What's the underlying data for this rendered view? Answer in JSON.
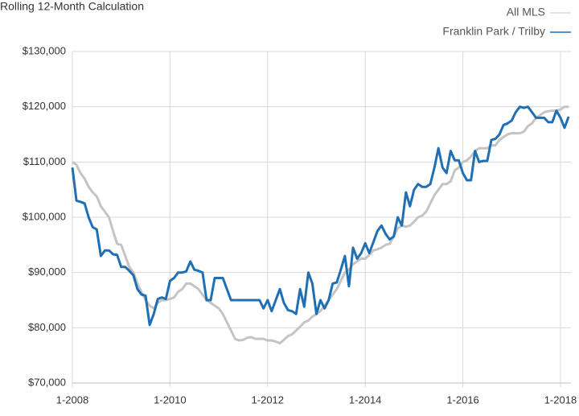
{
  "chart_data": {
    "type": "line",
    "title": "Rolling 12-Month Calculation",
    "categories": [
      "1-2008",
      null,
      null,
      null,
      null,
      null,
      null,
      null,
      null,
      null,
      null,
      null,
      null,
      null,
      null,
      null,
      null,
      null,
      null,
      null,
      null,
      null,
      null,
      null,
      "1-2010",
      null,
      null,
      null,
      null,
      null,
      null,
      null,
      null,
      null,
      null,
      null,
      null,
      null,
      null,
      null,
      null,
      null,
      null,
      null,
      null,
      null,
      null,
      null,
      "1-2012",
      null,
      null,
      null,
      null,
      null,
      null,
      null,
      null,
      null,
      null,
      null,
      null,
      null,
      null,
      null,
      null,
      null,
      null,
      null,
      null,
      null,
      null,
      null,
      "1-2014",
      null,
      null,
      null,
      null,
      null,
      null,
      null,
      null,
      null,
      null,
      null,
      null,
      null,
      null,
      null,
      null,
      null,
      null,
      null,
      null,
      null,
      null,
      null,
      "1-2016",
      null,
      null,
      null,
      null,
      null,
      null,
      null,
      null,
      null,
      null,
      null,
      null,
      null,
      null,
      null,
      null,
      null,
      null,
      null,
      null,
      null,
      null,
      null,
      "1-2018",
      null,
      null
    ],
    "series": [
      {
        "name": "All MLS",
        "color": "#c4c4c4",
        "values": [
          110000,
          109500,
          108000,
          107000,
          105500,
          104500,
          103800,
          102000,
          101000,
          100000,
          97500,
          95200,
          95000,
          93000,
          91000,
          90000,
          88000,
          86500,
          85000,
          84000,
          83500,
          84500,
          85000,
          85000,
          85200,
          85500,
          86500,
          87000,
          88000,
          88000,
          87500,
          87000,
          86000,
          85000,
          84500,
          84000,
          83500,
          82500,
          81000,
          79500,
          78000,
          77700,
          77800,
          78200,
          78300,
          78000,
          78000,
          78000,
          77700,
          77700,
          77500,
          77200,
          77800,
          78500,
          78800,
          79500,
          80200,
          81000,
          81300,
          82000,
          82500,
          83000,
          84000,
          85000,
          86000,
          87000,
          88500,
          90000,
          90500,
          91500,
          92000,
          92500,
          92500,
          93200,
          94000,
          94200,
          94500,
          95000,
          95200,
          96500,
          98000,
          98500,
          98300,
          98500,
          99200,
          100000,
          100300,
          101000,
          102500,
          104000,
          105000,
          106000,
          106000,
          106500,
          108500,
          109000,
          110000,
          110300,
          111000,
          112000,
          112500,
          112500,
          112500,
          113000,
          113000,
          114000,
          114500,
          115000,
          115200,
          115200,
          115200,
          115500,
          116500,
          117000,
          118000,
          118500,
          119000,
          119200,
          119300,
          119300,
          119500,
          120000,
          120000
        ]
      },
      {
        "name": "Franklin Park / Trilby",
        "color": "#1f6fb5",
        "values": [
          109000,
          103000,
          102800,
          102500,
          100000,
          98200,
          97800,
          93000,
          94000,
          94000,
          93300,
          93200,
          91000,
          91000,
          90300,
          89500,
          87000,
          86000,
          85800,
          80500,
          82500,
          85200,
          85500,
          85200,
          88500,
          89000,
          90000,
          90000,
          90200,
          92000,
          90500,
          90300,
          90000,
          85000,
          85000,
          89000,
          89000,
          89000,
          87000,
          85000,
          85000,
          85000,
          85000,
          85000,
          85000,
          85000,
          85000,
          83500,
          85000,
          83000,
          85000,
          87000,
          84500,
          83200,
          83000,
          82500,
          87000,
          83800,
          90000,
          88000,
          82500,
          85000,
          83500,
          85000,
          88000,
          88200,
          90500,
          93000,
          87500,
          94500,
          92500,
          93500,
          95300,
          93500,
          95500,
          97500,
          98500,
          97000,
          96000,
          96500,
          100000,
          98500,
          104500,
          102000,
          105000,
          106000,
          105500,
          105500,
          106000,
          109000,
          112500,
          109000,
          108000,
          112000,
          110300,
          110300,
          108000,
          106700,
          106700,
          112000,
          110000,
          110200,
          110200,
          114000,
          114200,
          115000,
          116700,
          117000,
          117500,
          119000,
          120000,
          119800,
          120000,
          119000,
          118000,
          118000,
          118000,
          117200,
          117200,
          119300,
          118000,
          116200,
          118200
        ]
      }
    ],
    "ylim": [
      70000,
      130000
    ],
    "yticks": [
      {
        "value": 70000,
        "label": "$70,000"
      },
      {
        "value": 80000,
        "label": "$80,000"
      },
      {
        "value": 90000,
        "label": "$90,000"
      },
      {
        "value": 100000,
        "label": "$100,000"
      },
      {
        "value": 110000,
        "label": "$110,000"
      },
      {
        "value": 120000,
        "label": "$120,000"
      },
      {
        "value": 130000,
        "label": "$130,000"
      }
    ],
    "grid": true,
    "legend": "top-right"
  }
}
